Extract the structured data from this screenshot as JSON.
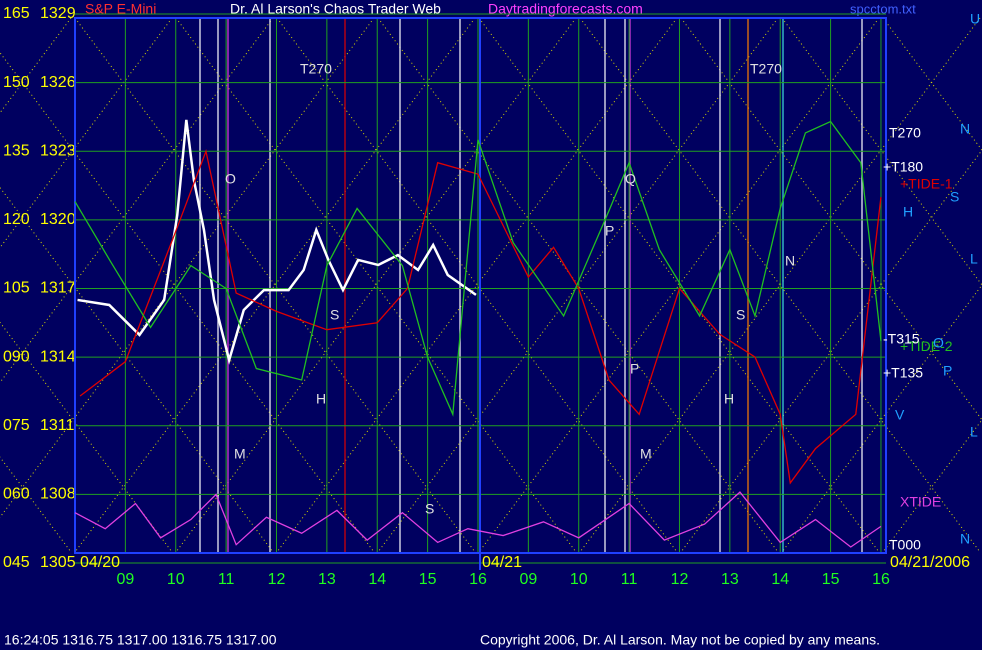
{
  "chart_data": {
    "type": "line",
    "title": "Dr. Al Larson's Chaos Trader Web",
    "subtitle": "S&P E-Mini",
    "site": "Daytradingforecasts.com",
    "file": "spcctom.txt",
    "status": "16:24:05  1316.75 1317.00 1316.75 1317.00",
    "copyright": "Copyright 2006, Dr. Al Larson. May not be copied by any means.",
    "date_labels": [
      "04/20",
      "04/21",
      "04/21/2006"
    ],
    "xlim": [
      8,
      24.1
    ],
    "xticks": [
      {
        "value": 9,
        "label": "09"
      },
      10,
      11,
      12,
      13,
      14,
      15,
      16,
      {
        "value": 17,
        "label": "09"
      },
      {
        "value": 18,
        "label": "10"
      },
      {
        "value": 19,
        "label": "11"
      },
      {
        "value": 20,
        "label": "12"
      },
      {
        "value": 21,
        "label": "13"
      },
      {
        "value": 22,
        "label": "14"
      },
      {
        "value": 23,
        "label": "15"
      },
      {
        "value": 24,
        "label": "16"
      }
    ],
    "ylim": [
      1305,
      1329
    ],
    "yticks": [
      1329,
      1326,
      1323,
      1320,
      1317,
      1314,
      1311,
      1308,
      1305
    ],
    "y2lim": [
      45,
      165
    ],
    "y2ticks": [
      165,
      150,
      135,
      120,
      105,
      {
        "value": 90,
        "label": "090"
      },
      {
        "value": 75,
        "label": "075"
      },
      {
        "value": 60,
        "label": "060"
      },
      {
        "value": 45,
        "label": "045"
      }
    ],
    "grid": true,
    "annotations": [
      "T270",
      "T270",
      "O",
      "Q",
      "P",
      "S",
      "H",
      "S",
      "N",
      "M",
      "M",
      "S",
      "H",
      "P",
      "T270",
      "+T180",
      "-T315",
      "+T135",
      "T000",
      "N",
      "S",
      "H",
      "O",
      "P",
      "V",
      "L",
      "U",
      "L",
      "N"
    ],
    "series": [
      {
        "color": "#ffffff",
        "x": [
          8.05,
          8.68,
          9.28,
          9.77,
          10.03,
          10.21,
          10.36,
          10.56,
          10.76,
          11.06,
          11.35,
          11.75,
          12.24,
          12.54,
          12.79,
          13.03,
          13.32,
          13.62,
          14.02,
          14.41,
          14.81,
          15.11,
          15.4,
          15.96
        ],
        "values": [
          1316.5,
          1316.28,
          1314.97,
          1316.5,
          1320.21,
          1324.37,
          1321.74,
          1319.56,
          1316.5,
          1313.87,
          1316.06,
          1316.93,
          1316.93,
          1317.81,
          1319.56,
          1318.25,
          1316.93,
          1318.25,
          1318.03,
          1318.46,
          1317.81,
          1318.9,
          1317.59,
          1316.72
        ]
      },
      {
        "name": "+TIDE-1",
        "color": "#e00000",
        "x": [
          8.1,
          9,
          10,
          10.6,
          11.2,
          12,
          13,
          14,
          14.6,
          15.2,
          16,
          17,
          17.5,
          18,
          18.6,
          19.2,
          20,
          20.8,
          21.5,
          22,
          22.2,
          22.7,
          23.5,
          24
        ],
        "values": [
          1312.3,
          1313.8,
          1319.5,
          1323,
          1316.8,
          1316,
          1315.2,
          1315.5,
          1317,
          1322.5,
          1322,
          1317.5,
          1318.8,
          1317,
          1313,
          1311.5,
          1317,
          1315,
          1314,
          1311.5,
          1308.5,
          1310,
          1311.5,
          1321
        ]
      },
      {
        "name": "+TIDE-2",
        "color": "#20c020",
        "x": [
          8,
          8.7,
          9.5,
          10.3,
          11,
          11.6,
          12.5,
          13,
          13.6,
          14.5,
          15,
          15.5,
          16,
          16.7,
          17.7,
          18.6,
          19,
          19.6,
          20.4,
          21,
          21.5,
          22,
          22.5,
          23,
          23.6,
          24
        ],
        "values": [
          1320.8,
          1318.2,
          1315.3,
          1318,
          1317,
          1313.5,
          1313,
          1318,
          1320.5,
          1318,
          1314,
          1311.5,
          1323.5,
          1319,
          1315.8,
          1320.4,
          1322.5,
          1318.7,
          1315.8,
          1318.7,
          1315.8,
          1320.5,
          1323.8,
          1324.3,
          1322.5,
          1314.7
        ]
      },
      {
        "name": "XTIDE",
        "color": "#e040e0",
        "x": [
          8,
          8.6,
          9.2,
          9.7,
          10.3,
          10.8,
          11.2,
          11.8,
          12.5,
          13.2,
          13.8,
          14.5,
          15.2,
          15.8,
          16.5,
          17.3,
          18,
          19,
          19.7,
          20.5,
          21.2,
          22,
          22.7,
          23.4,
          24
        ],
        "values": [
          1307.2,
          1306.5,
          1307.6,
          1306.1,
          1306.9,
          1308,
          1305.8,
          1307,
          1306.3,
          1307.3,
          1306,
          1307.2,
          1305.9,
          1306.5,
          1306.2,
          1306.8,
          1306.1,
          1307.6,
          1306,
          1306.7,
          1308.1,
          1305.9,
          1306.9,
          1305.7,
          1306.6
        ]
      }
    ]
  }
}
